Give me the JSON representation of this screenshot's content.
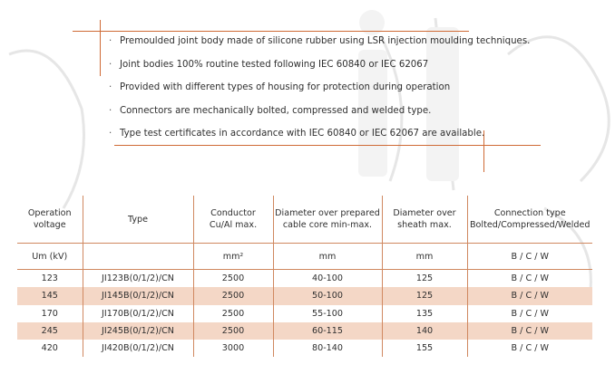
{
  "bullets": [
    "Premoulded joint body made of silicone rubber using LSR injection moulding techniques.",
    "Joint bodies 100% routine tested following IEC 60840 or IEC 62067",
    "Provided with different types of housing for protection during operation",
    "Connectors are mechanically bolted, compressed and welded type.",
    "Type test certificates in accordance with IEC 60840 or IEC 62067 are available."
  ],
  "bullet_glyph": "·",
  "table": {
    "headers": [
      [
        "Operation",
        "voltage"
      ],
      [
        "Type"
      ],
      [
        "Conductor",
        "Cu/Al max."
      ],
      [
        "Diameter over prepared",
        "cable core min-max."
      ],
      [
        "Diameter over",
        "sheath max."
      ],
      [
        "Connection type",
        "Bolted/Compressed/Welded"
      ]
    ],
    "units": [
      "Um (kV)",
      "",
      "mm²",
      "mm",
      "mm",
      "B / C / W"
    ],
    "rows": [
      [
        "123",
        "JI123B(0/1/2)/CN",
        "2500",
        "40-100",
        "125",
        "B / C / W"
      ],
      [
        "145",
        "JI145B(0/1/2)/CN",
        "2500",
        "50-100",
        "125",
        "B / C / W"
      ],
      [
        "170",
        "JI170B(0/1/2)/CN",
        "2500",
        "55-100",
        "135",
        "B / C / W"
      ],
      [
        "245",
        "JI245B(0/1/2)/CN",
        "2500",
        "60-115",
        "140",
        "B / C / W"
      ],
      [
        "420",
        "JI420B(0/1/2)/CN",
        "3000",
        "80-140",
        "155",
        "B / C / W"
      ]
    ],
    "shaded_rows": [
      1,
      3
    ]
  },
  "colors": {
    "accent": "#cf6a35",
    "row_shade": "#f4d7c6",
    "text": "#2f2f2f"
  }
}
